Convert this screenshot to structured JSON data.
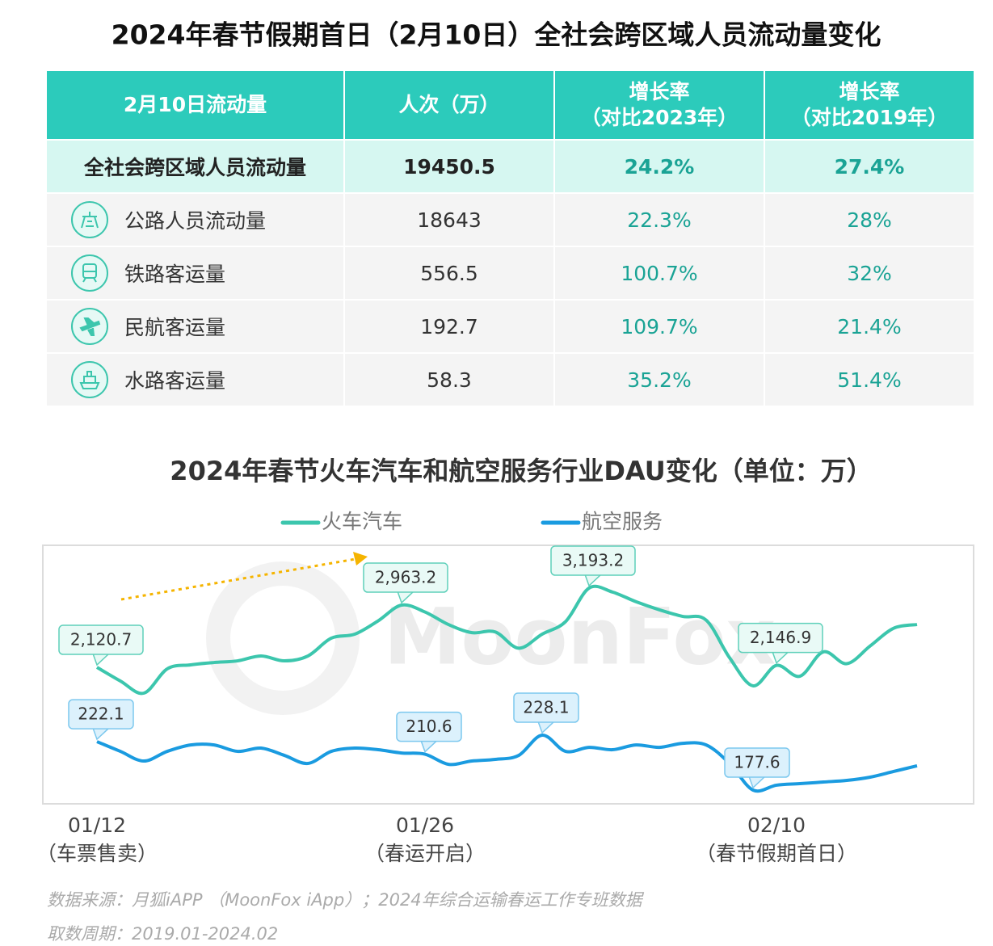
{
  "table": {
    "title": "2024年春节假期首日（2月10日）全社会跨区域人员流动量变化",
    "header": [
      [
        "2月10日流动量"
      ],
      [
        "人次（万）"
      ],
      [
        "增长率",
        "（对比2023年）"
      ],
      [
        "增长率",
        "（对比2019年）"
      ]
    ],
    "rows": [
      [
        "全社会跨区域人员流动量",
        "19450.5",
        "24.2%",
        "27.4%"
      ],
      [
        "公路人员流动量",
        "18643",
        "22.3%",
        "28%"
      ],
      [
        "铁路客运量",
        "556.5",
        "100.7%",
        "32%"
      ],
      [
        "民航客运量",
        "192.7",
        "109.7%",
        "21.4%"
      ],
      [
        "水路客运量",
        "58.3",
        "35.2%",
        "51.4%"
      ]
    ]
  },
  "chart_data": {
    "type": "line",
    "title": "2024年春节火车汽车和航空服务行业DAU变化（单位：万）",
    "categories": [
      "01/12",
      null,
      null,
      null,
      null,
      null,
      null,
      null,
      null,
      null,
      null,
      null,
      null,
      null,
      "01/26",
      null,
      null,
      null,
      null,
      null,
      null,
      null,
      null,
      null,
      null,
      null,
      null,
      null,
      null,
      "02/10",
      null,
      null,
      null,
      null,
      null,
      null
    ],
    "category_notes": [
      "（车票售卖）",
      null,
      null,
      null,
      null,
      null,
      null,
      null,
      null,
      null,
      null,
      null,
      null,
      null,
      "（春运开启）",
      null,
      null,
      null,
      null,
      null,
      null,
      null,
      null,
      null,
      null,
      null,
      null,
      null,
      null,
      "（春节假期首日）",
      null,
      null,
      null,
      null,
      null,
      null
    ],
    "series": [
      {
        "name": "火车汽车",
        "color": "#3cc6ad",
        "values": [
          2120.7,
          1935,
          1771,
          2100,
          2154,
          2186,
          2208,
          2274,
          2208,
          2274,
          2515,
          2569,
          2750,
          2963.2,
          2870,
          2700,
          2590,
          2600,
          2380,
          2570,
          2740,
          3193.2,
          3140,
          3010,
          2900,
          2810,
          2760,
          2250,
          1870,
          2146.9,
          2000,
          2330,
          2170,
          2410,
          2650,
          2700
        ],
        "value_labels": [
          "2,120.7",
          null,
          null,
          null,
          null,
          null,
          null,
          null,
          null,
          null,
          null,
          null,
          null,
          "2,963.2",
          null,
          null,
          null,
          null,
          null,
          null,
          null,
          "3,193.2",
          null,
          null,
          null,
          null,
          null,
          null,
          null,
          "2,146.9",
          null,
          null,
          null,
          null,
          null,
          null
        ]
      },
      {
        "name": "航空服务",
        "color": "#1a9be0",
        "values": [
          222.1,
          213.2,
          204.3,
          213.2,
          219.1,
          219.1,
          213.2,
          216.2,
          209.5,
          202.1,
          213.2,
          216.2,
          214.7,
          211.7,
          210.6,
          201.3,
          204.3,
          205.8,
          209.5,
          228.1,
          213.2,
          216.9,
          214.7,
          219.1,
          216.9,
          220.6,
          219.1,
          202.1,
          177.6,
          182.1,
          183.5,
          185.0,
          186.5,
          189.5,
          194.7,
          199.9
        ],
        "value_labels": [
          "222.1",
          null,
          null,
          null,
          null,
          null,
          null,
          null,
          null,
          null,
          null,
          null,
          null,
          null,
          "210.6",
          null,
          null,
          null,
          null,
          "228.1",
          null,
          null,
          null,
          null,
          null,
          null,
          null,
          null,
          "177.6",
          null,
          null,
          null,
          null,
          null,
          null,
          null
        ]
      }
    ],
    "watermark": "MoonFox"
  },
  "footer": [
    "数据来源：月狐iAPP （MoonFox iApp）；2024年综合运输春运工作专班数据",
    "取数周期：2019.01-2024.02"
  ]
}
